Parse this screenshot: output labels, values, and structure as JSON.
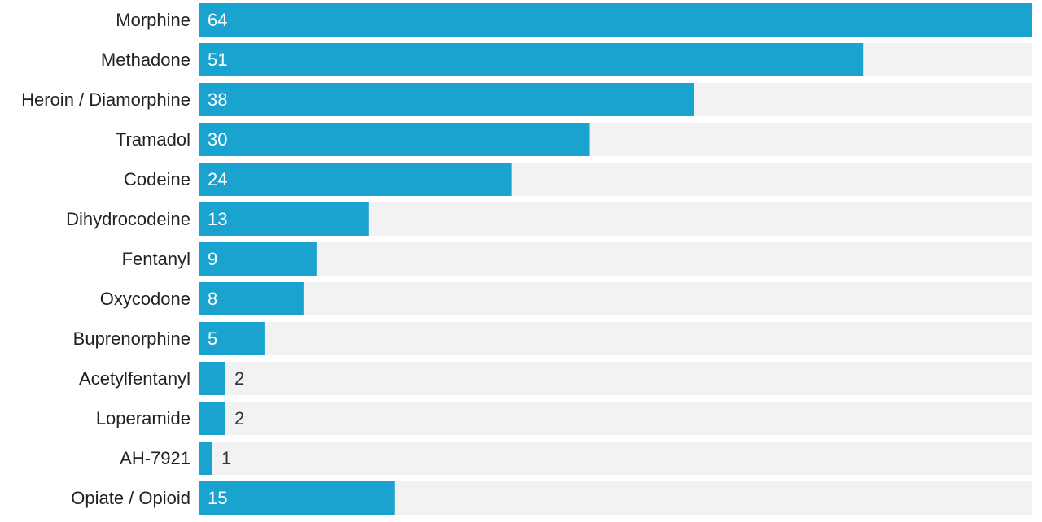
{
  "chart_data": {
    "type": "bar",
    "orientation": "horizontal",
    "categories": [
      "Morphine",
      "Methadone",
      "Heroin / Diamorphine",
      "Tramadol",
      "Codeine",
      "Dihydrocodeine",
      "Fentanyl",
      "Oxycodone",
      "Buprenorphine",
      "Acetylfentanyl",
      "Loperamide",
      "AH-7921",
      "Opiate / Opioid"
    ],
    "values": [
      64,
      51,
      38,
      30,
      24,
      13,
      9,
      8,
      5,
      2,
      2,
      1,
      15
    ],
    "color": "#1aa3cf",
    "xlim": [
      0,
      64
    ]
  }
}
